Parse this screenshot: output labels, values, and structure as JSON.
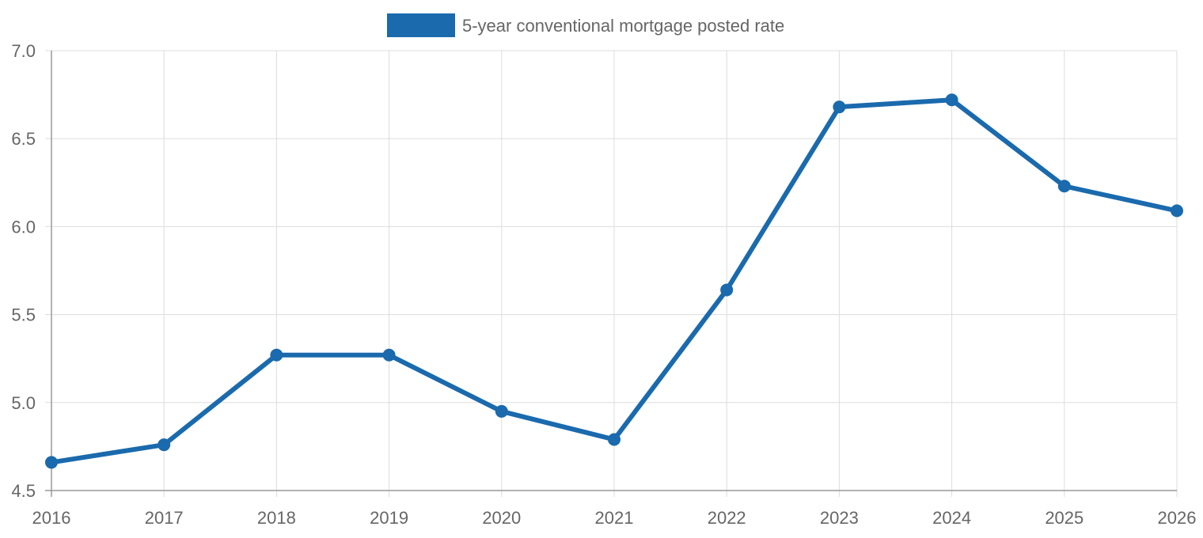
{
  "chart_data": {
    "type": "line",
    "title": "",
    "xlabel": "",
    "ylabel": "",
    "x": [
      "2016",
      "2017",
      "2018",
      "2019",
      "2020",
      "2021",
      "2022",
      "2023",
      "2024",
      "2025",
      "2026"
    ],
    "series": [
      {
        "name": "5-year conventional mortgage posted rate",
        "values": [
          4.66,
          4.76,
          5.27,
          5.27,
          4.95,
          4.79,
          5.64,
          6.68,
          6.72,
          6.23,
          6.09
        ],
        "color": "#1a6aad"
      }
    ],
    "ylim": [
      4.5,
      7.0
    ],
    "yticks": [
      "4.5",
      "5.0",
      "5.5",
      "6.0",
      "6.5",
      "7.0"
    ],
    "grid": true,
    "legend_position": "top-center"
  }
}
